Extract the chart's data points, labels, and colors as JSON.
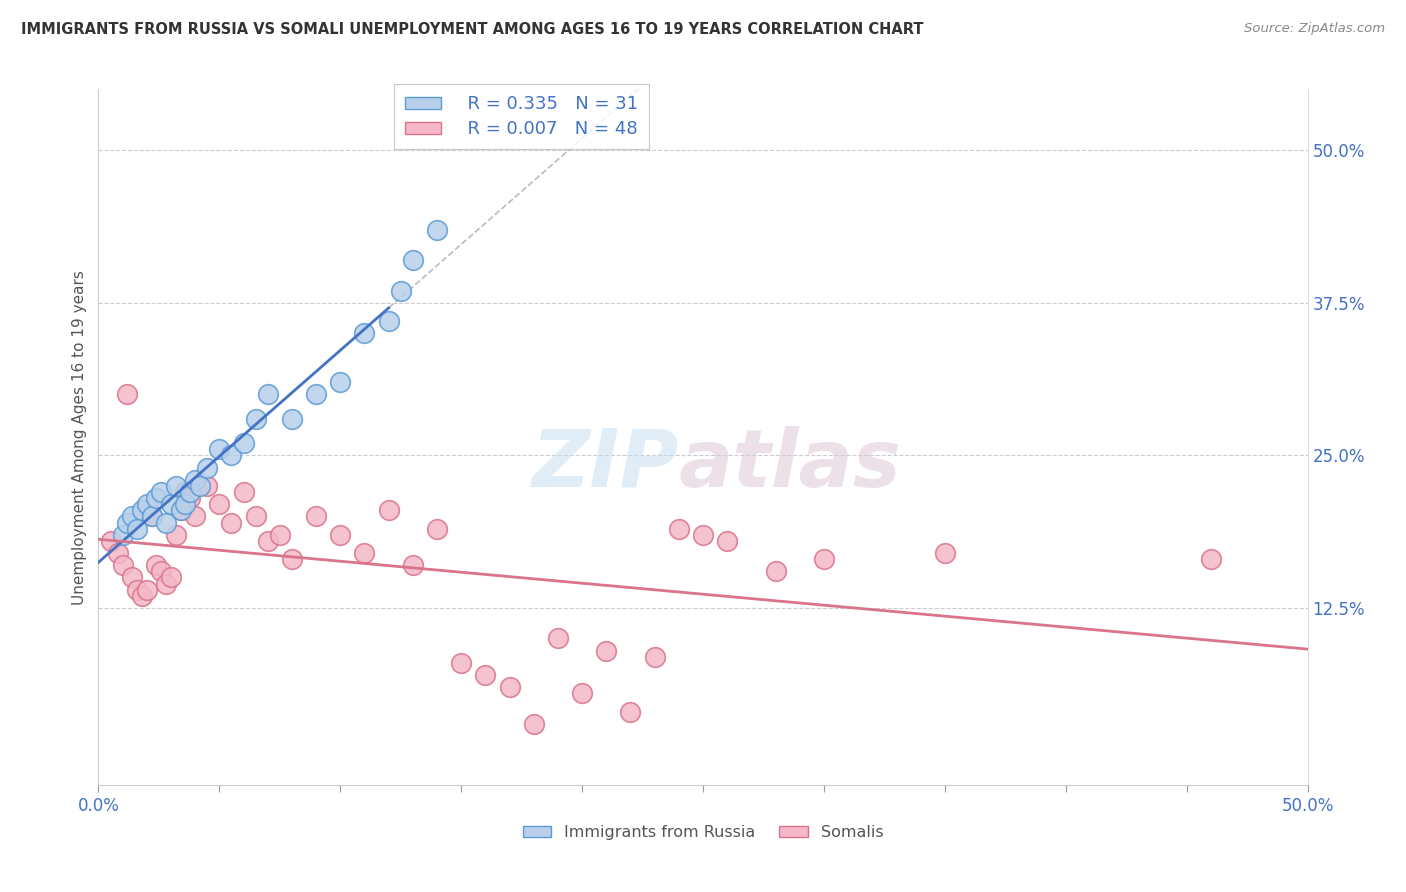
{
  "title": "IMMIGRANTS FROM RUSSIA VS SOMALI UNEMPLOYMENT AMONG AGES 16 TO 19 YEARS CORRELATION CHART",
  "source": "Source: ZipAtlas.com",
  "ylabel": "Unemployment Among Ages 16 to 19 years",
  "xlim": [
    0,
    50
  ],
  "ylim": [
    -2,
    55
  ],
  "russia_R": 0.335,
  "russia_N": 31,
  "somali_R": 0.007,
  "somali_N": 48,
  "russia_color": "#b8d0ea",
  "russia_edge": "#5b9bd5",
  "somali_color": "#f4b8c8",
  "somali_edge": "#d9748a",
  "russia_line_color": "#4472c4",
  "somali_line_color": "#d9748a",
  "russia_x": [
    1.0,
    1.2,
    1.4,
    1.6,
    1.8,
    2.0,
    2.2,
    2.4,
    2.6,
    2.8,
    3.0,
    3.2,
    3.4,
    3.6,
    3.8,
    4.0,
    4.2,
    4.5,
    5.0,
    5.5,
    6.0,
    6.5,
    7.0,
    8.0,
    9.0,
    10.0,
    11.0,
    12.0,
    12.5,
    13.0,
    14.0
  ],
  "russia_y": [
    18.5,
    19.5,
    20.0,
    19.0,
    20.5,
    21.0,
    20.0,
    21.5,
    22.0,
    19.5,
    21.0,
    22.5,
    20.5,
    21.0,
    22.0,
    23.0,
    22.5,
    24.0,
    25.5,
    25.0,
    26.0,
    28.0,
    30.0,
    28.0,
    30.0,
    31.0,
    35.0,
    36.0,
    38.5,
    41.0,
    43.5
  ],
  "somali_x": [
    0.5,
    0.8,
    1.0,
    1.2,
    1.4,
    1.6,
    1.8,
    2.0,
    2.2,
    2.4,
    2.6,
    2.8,
    3.0,
    3.2,
    3.4,
    3.6,
    3.8,
    4.0,
    4.5,
    5.0,
    5.5,
    6.0,
    6.5,
    7.0,
    7.5,
    8.0,
    9.0,
    10.0,
    11.0,
    12.0,
    13.0,
    14.0,
    15.0,
    16.0,
    17.0,
    18.0,
    19.0,
    20.0,
    21.0,
    22.0,
    23.0,
    24.0,
    25.0,
    26.0,
    28.0,
    30.0,
    35.0,
    46.0
  ],
  "somali_y": [
    18.0,
    17.0,
    16.0,
    30.0,
    15.0,
    14.0,
    13.5,
    14.0,
    20.0,
    16.0,
    15.5,
    14.5,
    15.0,
    18.5,
    20.5,
    22.0,
    21.5,
    20.0,
    22.5,
    21.0,
    19.5,
    22.0,
    20.0,
    18.0,
    18.5,
    16.5,
    20.0,
    18.5,
    17.0,
    20.5,
    16.0,
    19.0,
    8.0,
    7.0,
    6.0,
    3.0,
    10.0,
    5.5,
    9.0,
    4.0,
    8.5,
    19.0,
    18.5,
    18.0,
    15.5,
    16.5,
    17.0,
    16.5
  ],
  "yticks": [
    12.5,
    25.0,
    37.5,
    50.0
  ],
  "xticks": [
    0,
    5,
    10,
    15,
    20,
    25,
    30,
    35,
    40,
    45,
    50
  ]
}
